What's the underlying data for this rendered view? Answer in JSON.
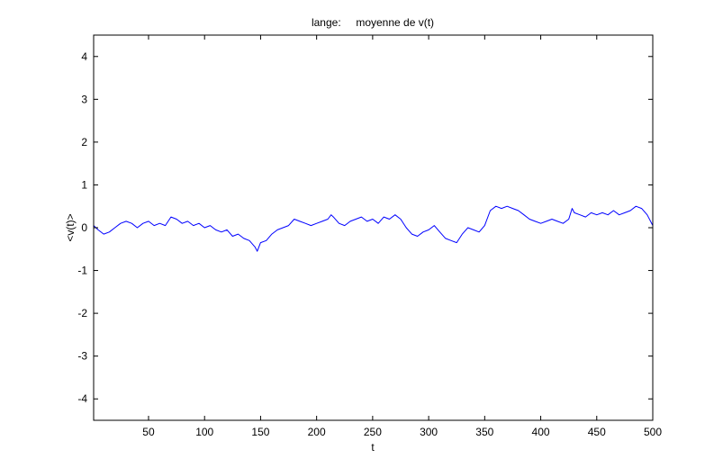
{
  "chart_data": {
    "type": "line",
    "title": "lange:     moyenne de v(t)",
    "xlabel": "t",
    "ylabel": "<v(t)>",
    "xlim": [
      1,
      500
    ],
    "ylim": [
      -4.5,
      4.5
    ],
    "xticks": [
      50,
      100,
      150,
      200,
      250,
      300,
      350,
      400,
      450,
      500
    ],
    "yticks": [
      -4,
      -3,
      -2,
      -1,
      0,
      1,
      2,
      3,
      4
    ],
    "grid": false,
    "legend": "none",
    "series": [
      {
        "color": "#0000ff",
        "x": [
          1,
          5,
          10,
          15,
          20,
          25,
          30,
          35,
          40,
          45,
          50,
          55,
          60,
          65,
          70,
          75,
          80,
          85,
          90,
          95,
          100,
          105,
          110,
          115,
          120,
          125,
          130,
          135,
          140,
          145,
          147,
          150,
          155,
          160,
          165,
          170,
          175,
          180,
          185,
          190,
          195,
          200,
          205,
          210,
          213,
          215,
          220,
          225,
          230,
          235,
          240,
          245,
          250,
          255,
          260,
          265,
          270,
          275,
          280,
          285,
          290,
          295,
          300,
          305,
          310,
          315,
          320,
          325,
          330,
          335,
          340,
          345,
          350,
          355,
          360,
          365,
          370,
          375,
          380,
          385,
          390,
          395,
          400,
          405,
          410,
          415,
          420,
          425,
          428,
          430,
          435,
          440,
          445,
          450,
          455,
          460,
          465,
          470,
          475,
          480,
          485,
          490,
          495,
          500
        ],
        "y": [
          0.05,
          -0.05,
          -0.15,
          -0.1,
          0.0,
          0.1,
          0.15,
          0.1,
          0.0,
          0.1,
          0.15,
          0.05,
          0.1,
          0.05,
          0.25,
          0.2,
          0.1,
          0.15,
          0.05,
          0.1,
          0.0,
          0.05,
          -0.05,
          -0.1,
          -0.05,
          -0.2,
          -0.15,
          -0.25,
          -0.3,
          -0.45,
          -0.55,
          -0.35,
          -0.3,
          -0.15,
          -0.05,
          0.0,
          0.05,
          0.2,
          0.15,
          0.1,
          0.05,
          0.1,
          0.15,
          0.2,
          0.3,
          0.25,
          0.1,
          0.05,
          0.15,
          0.2,
          0.25,
          0.15,
          0.2,
          0.1,
          0.25,
          0.2,
          0.3,
          0.2,
          0.0,
          -0.15,
          -0.2,
          -0.1,
          -0.05,
          0.05,
          -0.1,
          -0.25,
          -0.3,
          -0.35,
          -0.15,
          0.0,
          -0.05,
          -0.1,
          0.05,
          0.4,
          0.5,
          0.45,
          0.5,
          0.45,
          0.4,
          0.3,
          0.2,
          0.15,
          0.1,
          0.15,
          0.2,
          0.15,
          0.1,
          0.2,
          0.45,
          0.35,
          0.3,
          0.25,
          0.35,
          0.3,
          0.35,
          0.3,
          0.4,
          0.3,
          0.35,
          0.4,
          0.5,
          0.45,
          0.3,
          0.05
        ]
      }
    ]
  }
}
